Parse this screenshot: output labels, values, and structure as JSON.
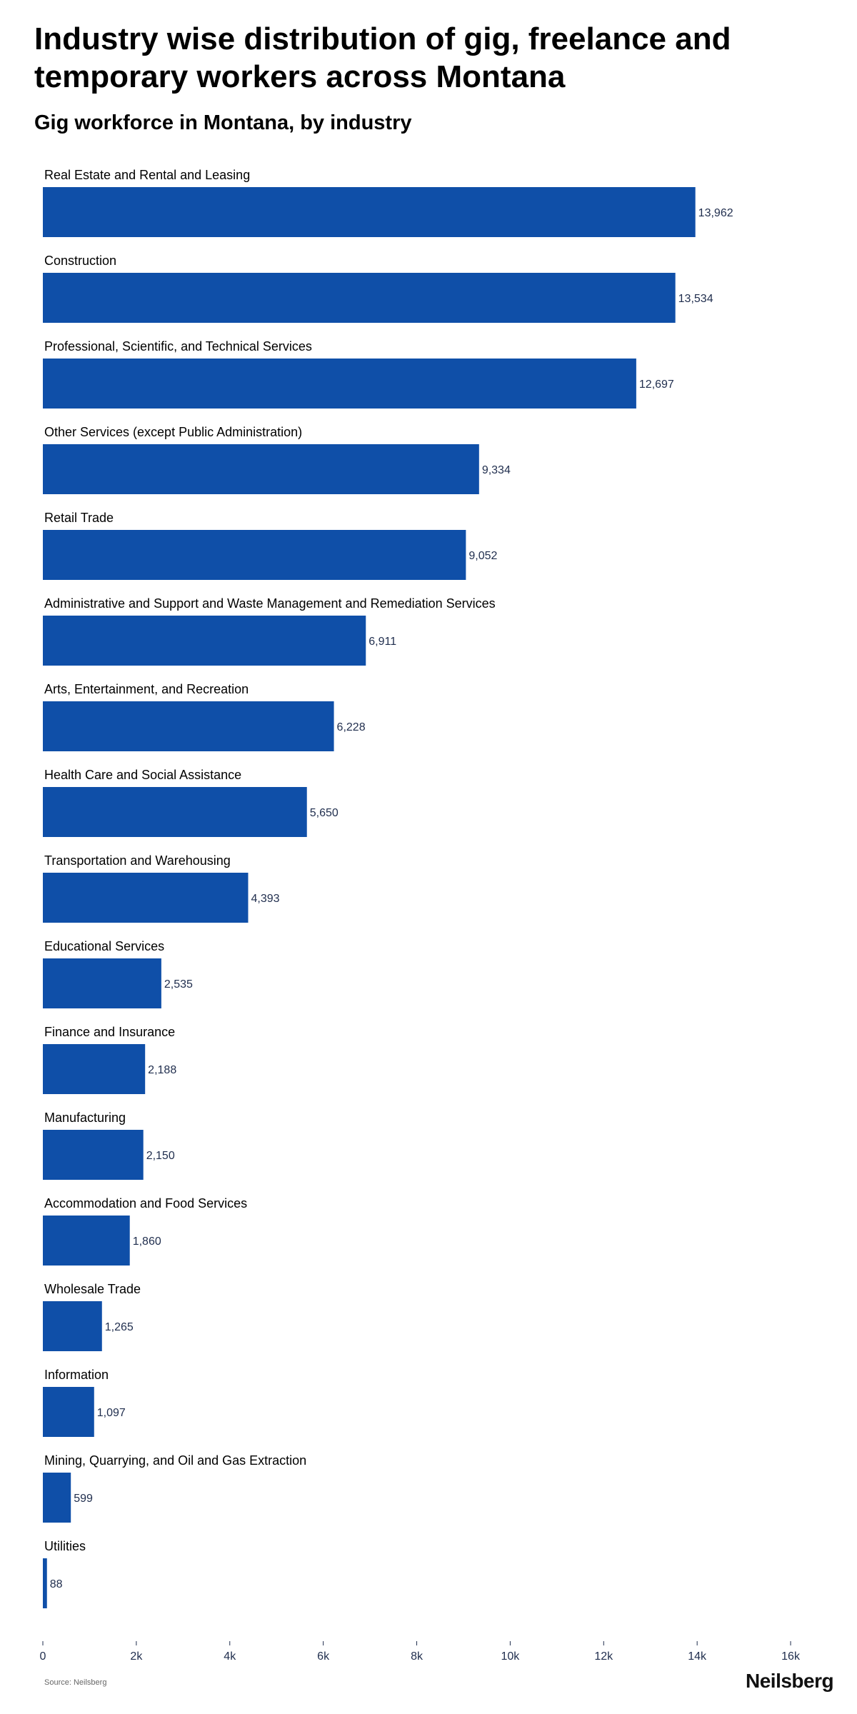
{
  "header": {
    "title": "Industry wise distribution of gig, freelance and temporary workers across Montana",
    "subtitle": "Gig workforce in Montana, by industry"
  },
  "footer": {
    "source": "Source: Neilsberg",
    "brand": "Neilsberg"
  },
  "chart_data": {
    "type": "bar",
    "orientation": "horizontal",
    "title": "Gig workforce in Montana, by industry",
    "bar_color": "#0f4fa8",
    "xlim": [
      0,
      16000
    ],
    "ticks": [
      {
        "value": 0,
        "label": "0"
      },
      {
        "value": 2000,
        "label": "2k"
      },
      {
        "value": 4000,
        "label": "4k"
      },
      {
        "value": 6000,
        "label": "6k"
      },
      {
        "value": 8000,
        "label": "8k"
      },
      {
        "value": 10000,
        "label": "10k"
      },
      {
        "value": 12000,
        "label": "12k"
      },
      {
        "value": 14000,
        "label": "14k"
      },
      {
        "value": 16000,
        "label": "16k"
      }
    ],
    "categories": [
      "Real Estate and Rental and Leasing",
      "Construction",
      "Professional, Scientific, and Technical Services",
      "Other Services (except Public Administration)",
      "Retail Trade",
      "Administrative and Support and Waste Management and Remediation Services",
      "Arts, Entertainment, and Recreation",
      "Health Care and Social Assistance",
      "Transportation and Warehousing",
      "Educational Services",
      "Finance and Insurance",
      "Manufacturing",
      "Accommodation and Food Services",
      "Wholesale Trade",
      "Information",
      "Mining, Quarrying, and Oil and Gas Extraction",
      "Utilities"
    ],
    "values": [
      13962,
      13534,
      12697,
      9334,
      9052,
      6911,
      6228,
      5650,
      4393,
      2535,
      2188,
      2150,
      1860,
      1265,
      1097,
      599,
      88
    ],
    "value_labels": [
      "13,962",
      "13,534",
      "12,697",
      "9,334",
      "9,052",
      "6,911",
      "6,228",
      "5,650",
      "4,393",
      "2,535",
      "2,188",
      "2,150",
      "1,860",
      "1,265",
      "1,097",
      "599",
      "88"
    ]
  }
}
